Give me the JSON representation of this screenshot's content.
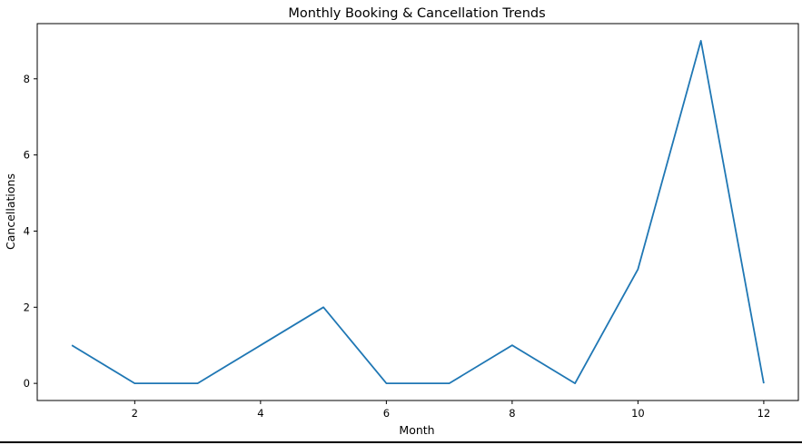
{
  "chart_data": {
    "type": "line",
    "title": "Monthly Booking & Cancellation Trends",
    "xlabel": "Month",
    "ylabel": "Cancellations",
    "x": [
      1,
      2,
      3,
      4,
      5,
      6,
      7,
      8,
      9,
      10,
      11,
      12
    ],
    "series": [
      {
        "values": [
          1,
          0,
          0,
          1,
          2,
          0,
          0,
          1,
          0,
          3,
          9,
          0
        ],
        "color": "#1f77b4"
      }
    ],
    "xlim": [
      0.45,
      12.55
    ],
    "ylim": [
      -0.45,
      9.45
    ],
    "xticks": [
      2,
      4,
      6,
      8,
      10,
      12
    ],
    "yticks": [
      0,
      2,
      4,
      6,
      8
    ],
    "grid": false,
    "legend": false
  }
}
